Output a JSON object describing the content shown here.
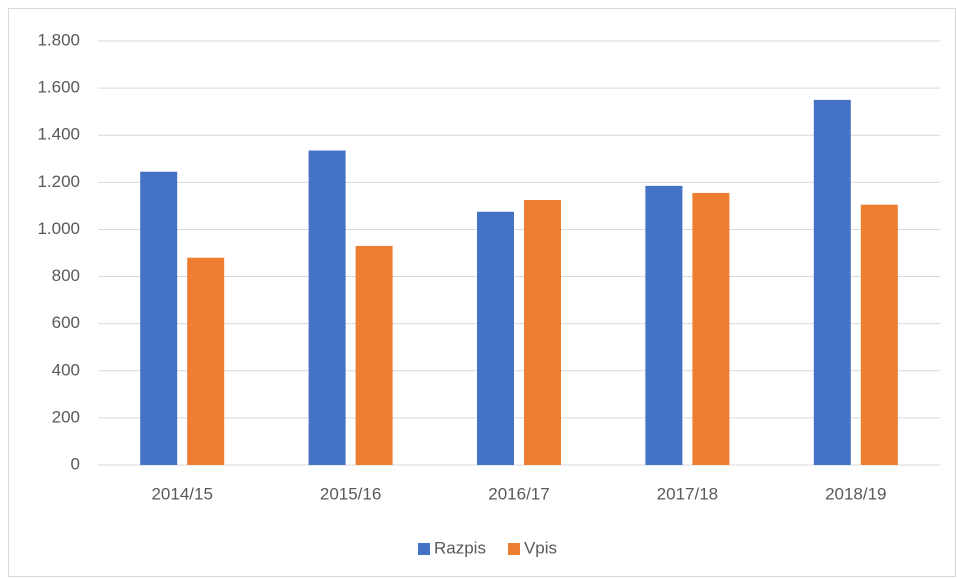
{
  "chart_data": {
    "type": "bar",
    "categories": [
      "2014/15",
      "2015/16",
      "2016/17",
      "2017/18",
      "2018/19"
    ],
    "series": [
      {
        "name": "Razpis",
        "color": "#4472c4",
        "values": [
          1245,
          1335,
          1075,
          1185,
          1550
        ]
      },
      {
        "name": "Vpis",
        "color": "#ed7d31",
        "values": [
          880,
          930,
          1125,
          1155,
          1105
        ]
      }
    ],
    "ylim": [
      0,
      1800
    ],
    "yticks": [
      0,
      200,
      400,
      600,
      800,
      {
        "value": 1000,
        "label": "1.000"
      },
      {
        "value": 1200,
        "label": "1.200"
      },
      {
        "value": 1400,
        "label": "1.400"
      },
      {
        "value": 1600,
        "label": "1.600"
      },
      {
        "value": 1800,
        "label": "1.800"
      }
    ],
    "grid": true,
    "legend": "bottom"
  }
}
